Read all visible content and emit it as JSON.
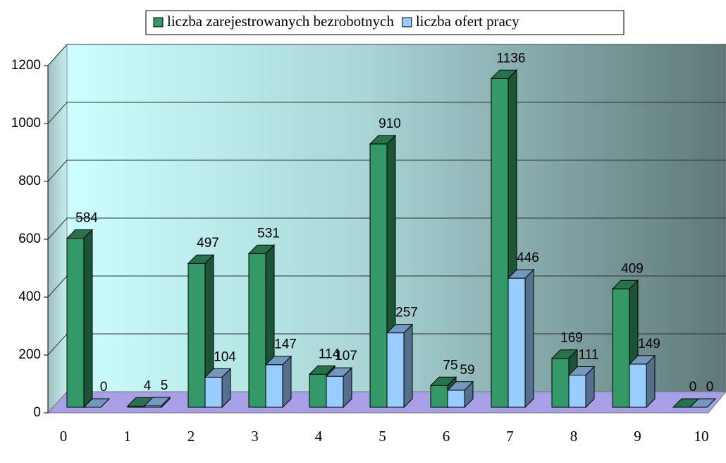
{
  "chart_data": {
    "type": "bar3d",
    "categories": [
      "0",
      "1",
      "2",
      "3",
      "4",
      "5",
      "6",
      "7",
      "8",
      "9",
      "10"
    ],
    "series": [
      {
        "name": "liczba zarejestrowanych bezrobotnych",
        "color": "#339966",
        "values": [
          584,
          4,
          497,
          531,
          114,
          910,
          75,
          1136,
          169,
          409,
          0
        ]
      },
      {
        "name": "liczba ofert pracy",
        "color": "#99ccff",
        "values": [
          0,
          5,
          104,
          147,
          107,
          257,
          59,
          446,
          111,
          149,
          0
        ]
      }
    ],
    "ylim": [
      0,
      1200
    ],
    "yticks": [
      0,
      200,
      400,
      600,
      800,
      1000,
      1200
    ],
    "grid": true,
    "legend": "top"
  }
}
